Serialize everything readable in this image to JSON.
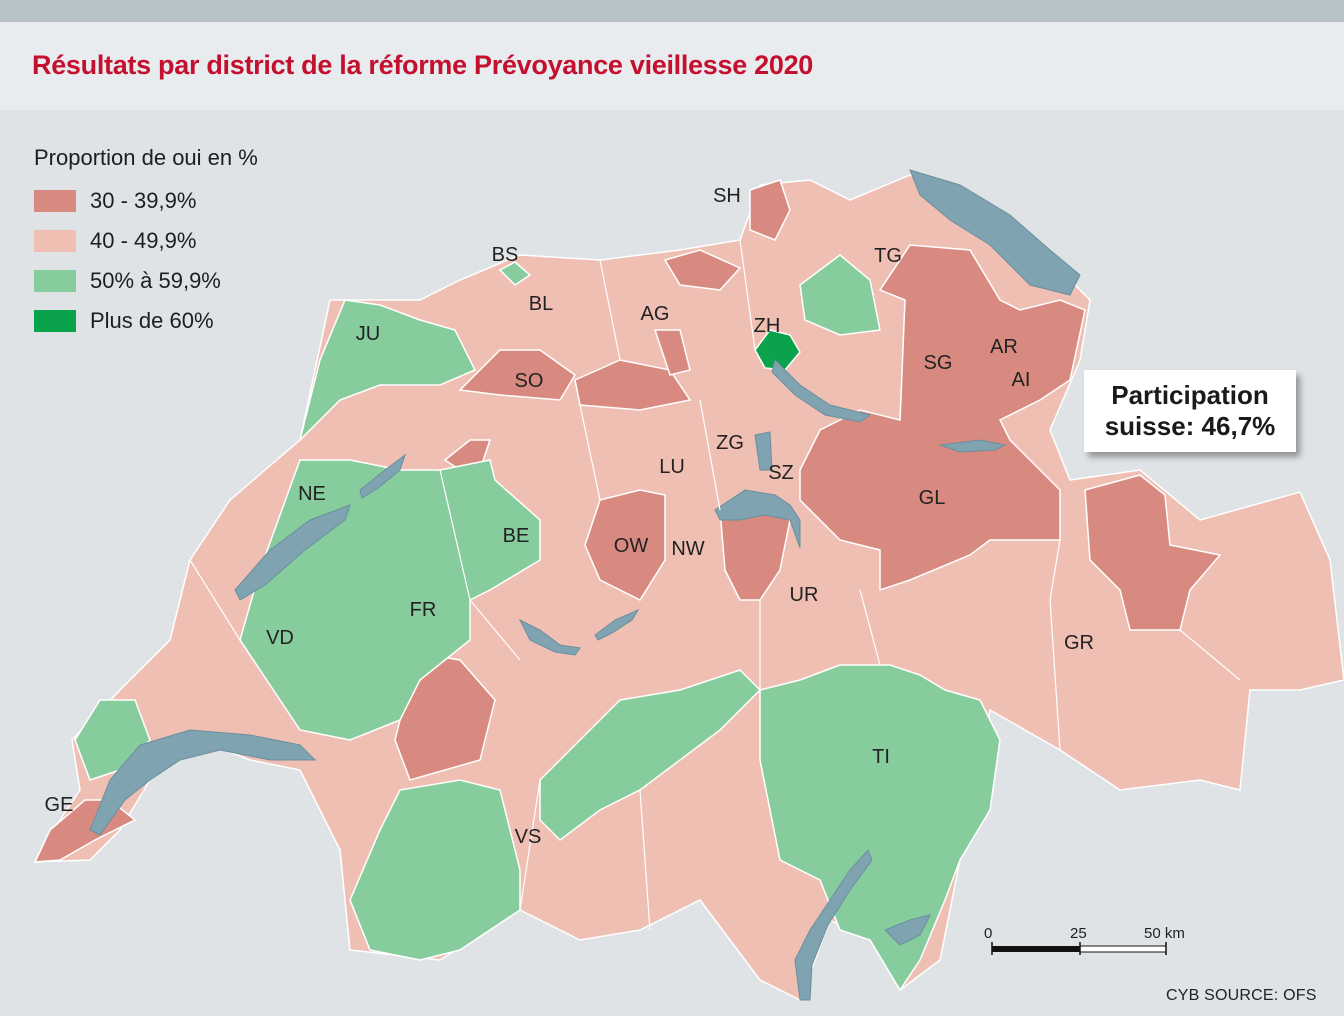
{
  "title": "Résultats par district de la réforme Prévoyance vieillesse 2020",
  "legend": {
    "title": "Proportion de oui en %",
    "items": [
      {
        "label": "30 - 39,9%",
        "color": "#d98a80"
      },
      {
        "label": "40 - 49,9%",
        "color": "#efbfb4"
      },
      {
        "label": "50% à 59,9%",
        "color": "#87cc9d"
      },
      {
        "label": "Plus de 60%",
        "color": "#0aa24a"
      }
    ]
  },
  "map": {
    "lake_color": "#7fa3b0",
    "cantons": [
      "SH",
      "BS",
      "TG",
      "BL",
      "AG",
      "ZH",
      "JU",
      "AR",
      "SG",
      "AI",
      "SO",
      "ZG",
      "LU",
      "SZ",
      "NE",
      "GL",
      "BE",
      "OW",
      "NW",
      "FR",
      "UR",
      "GR",
      "VD",
      "TI",
      "GE",
      "VS"
    ]
  },
  "participation": {
    "line1": "Participation",
    "line2": "suisse: 46,7%"
  },
  "scale": {
    "ticks": [
      "0",
      "25",
      "50 km"
    ]
  },
  "source": "CYB SOURCE: OFS"
}
